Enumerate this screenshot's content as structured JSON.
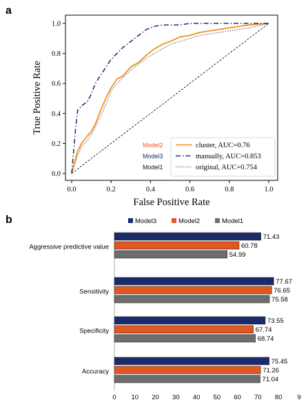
{
  "panel_labels": {
    "a": "a",
    "b": "b"
  },
  "chart_data": [
    {
      "type": "line",
      "panel": "a",
      "xlabel": "False Positive Rate",
      "ylabel": "True Positive Rate",
      "xlim": [
        0,
        1
      ],
      "ylim": [
        0,
        1
      ],
      "ticks": {
        "x": [
          "0.0",
          "0.2",
          "0.4",
          "0.6",
          "0.8",
          "1.0"
        ],
        "y": [
          "0.0",
          "0.2",
          "0.4",
          "0.6",
          "0.8",
          "1.0"
        ]
      },
      "legend_position": "lower-right",
      "series": [
        {
          "name": "cluster, AUC=0.76",
          "model": "Model2",
          "color": "#f0901e",
          "style": "solid",
          "x": [
            0,
            0.01,
            0.02,
            0.03,
            0.05,
            0.08,
            0.1,
            0.12,
            0.15,
            0.18,
            0.2,
            0.23,
            0.26,
            0.3,
            0.34,
            0.38,
            0.42,
            0.46,
            0.5,
            0.55,
            0.6,
            0.65,
            0.7,
            0.75,
            0.8,
            0.85,
            0.9,
            0.95,
            1.0
          ],
          "y": [
            0,
            0.05,
            0.1,
            0.15,
            0.2,
            0.25,
            0.28,
            0.33,
            0.43,
            0.52,
            0.57,
            0.63,
            0.65,
            0.71,
            0.74,
            0.79,
            0.83,
            0.86,
            0.88,
            0.91,
            0.92,
            0.94,
            0.95,
            0.96,
            0.97,
            0.98,
            0.99,
            0.995,
            1.0
          ]
        },
        {
          "name": "manually, AUC=0.853",
          "model": "Model3",
          "color": "#1b2a6b",
          "style": "dashdot",
          "x": [
            0,
            0.01,
            0.02,
            0.03,
            0.05,
            0.08,
            0.1,
            0.12,
            0.15,
            0.18,
            0.2,
            0.23,
            0.26,
            0.3,
            0.34,
            0.38,
            0.42,
            0.46,
            0.5,
            0.55,
            0.6,
            0.65,
            0.7,
            0.75,
            0.8,
            0.85,
            0.9,
            0.95,
            1.0
          ],
          "y": [
            0,
            0.15,
            0.3,
            0.42,
            0.45,
            0.48,
            0.53,
            0.6,
            0.66,
            0.72,
            0.76,
            0.8,
            0.84,
            0.88,
            0.92,
            0.96,
            0.98,
            0.99,
            0.99,
            0.99,
            1.0,
            1.0,
            1.0,
            1.0,
            1.0,
            1.0,
            1.0,
            1.0,
            1.0
          ]
        },
        {
          "name": "original, AUC=0.754",
          "model": "Model1",
          "color": "#666666",
          "style": "dotted",
          "x": [
            0,
            0.01,
            0.02,
            0.03,
            0.05,
            0.08,
            0.1,
            0.12,
            0.15,
            0.18,
            0.2,
            0.23,
            0.26,
            0.3,
            0.34,
            0.38,
            0.42,
            0.46,
            0.5,
            0.55,
            0.6,
            0.65,
            0.7,
            0.75,
            0.8,
            0.85,
            0.9,
            0.95,
            1.0
          ],
          "y": [
            0,
            0.04,
            0.08,
            0.12,
            0.18,
            0.22,
            0.26,
            0.31,
            0.39,
            0.48,
            0.55,
            0.6,
            0.64,
            0.69,
            0.73,
            0.77,
            0.8,
            0.83,
            0.86,
            0.88,
            0.9,
            0.92,
            0.93,
            0.94,
            0.95,
            0.96,
            0.97,
            0.985,
            1.0
          ]
        }
      ],
      "reference_line": {
        "x": [
          0,
          1
        ],
        "y": [
          0,
          1
        ],
        "color": "#000000",
        "style": "dashed"
      }
    },
    {
      "type": "bar",
      "panel": "b",
      "orientation": "horizontal",
      "categories": [
        "Aggressive predictive value",
        "Sensitivity",
        "Specificity",
        "Accuracy"
      ],
      "series": [
        {
          "name": "Model3",
          "color": "#1b2a6b",
          "values": [
            71.43,
            77.67,
            73.55,
            75.45
          ]
        },
        {
          "name": "Model2",
          "color": "#e0571f",
          "values": [
            60.78,
            76.65,
            67.74,
            71.26
          ]
        },
        {
          "name": "Model1",
          "color": "#6d6d6d",
          "values": [
            54.99,
            75.58,
            68.74,
            71.04
          ]
        }
      ],
      "xticks": [
        "0",
        "10",
        "20",
        "30",
        "40",
        "50",
        "60",
        "70",
        "80",
        "9"
      ],
      "xlim": [
        0,
        90
      ],
      "legend_position": "top"
    }
  ]
}
